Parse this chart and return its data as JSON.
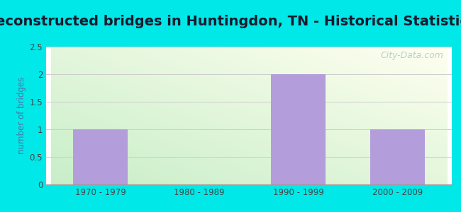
{
  "title": "Reconstructed bridges in Huntingdon, TN - Historical Statistics",
  "categories": [
    "1970 - 1979",
    "1980 - 1989",
    "1990 - 1999",
    "2000 - 2009"
  ],
  "values": [
    1,
    0,
    2,
    1
  ],
  "bar_color": "#b39ddb",
  "ylabel": "number of bridges",
  "ylim": [
    0,
    2.5
  ],
  "yticks": [
    0,
    0.5,
    1,
    1.5,
    2,
    2.5
  ],
  "background_outer": "#00e8e8",
  "background_grad_topleft": "#c8eec8",
  "background_grad_bottomright": "#fffff0",
  "grid_color": "#cccccc",
  "title_fontsize": 14,
  "axis_label_color": "#4477aa",
  "tick_label_color": "#444444",
  "watermark": "City-Data.com",
  "bar_width": 0.55
}
